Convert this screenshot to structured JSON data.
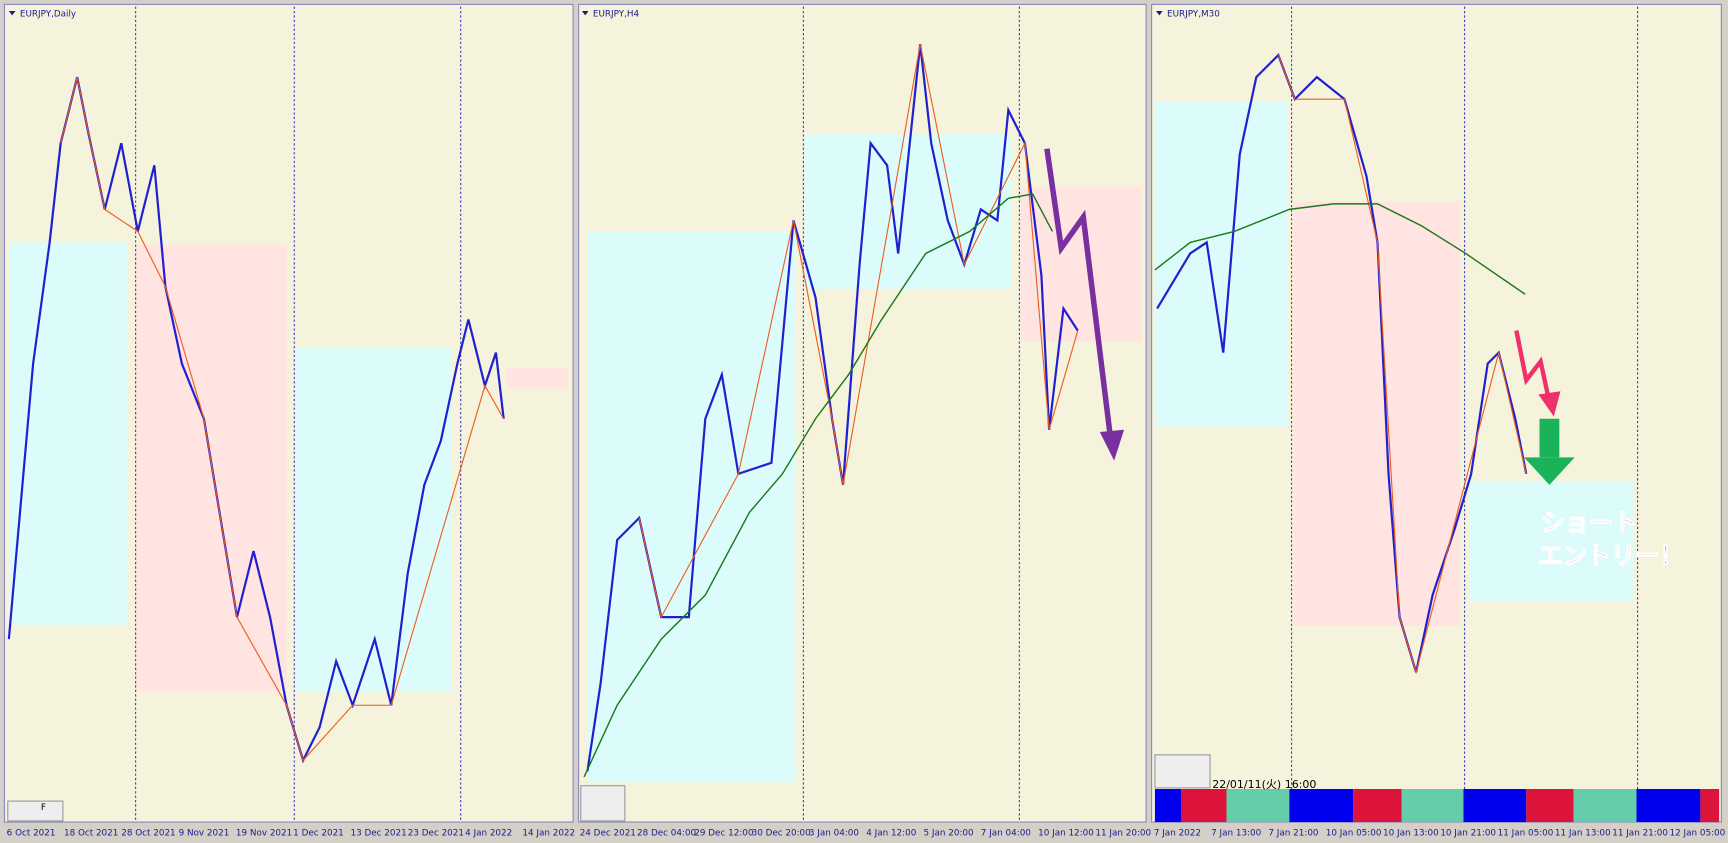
{
  "panels": [
    {
      "title": "EURJPY,Daily",
      "dates": [
        "6 Oct 2021",
        "18 Oct 2021",
        "28 Oct 2021",
        "9 Nov 2021",
        "19 Nov 2021",
        "1 Dec 2021",
        "13 Dec 2021",
        "23 Dec 2021",
        "4 Jan 2022",
        "14 Jan 2022"
      ],
      "button": "F"
    },
    {
      "title": "EURJPY,H4",
      "dates": [
        "24 Dec 2021",
        "28 Dec 04:00",
        "29 Dec 12:00",
        "30 Dec 20:00",
        "3 Jan 04:00",
        "4 Jan 12:00",
        "5 Jan 20:00",
        "7 Jan 04:00",
        "10 Jan 12:00",
        "11 Jan 20:00"
      ]
    },
    {
      "title": "EURJPY,M30",
      "dates": [
        "7 Jan 2022",
        "7 Jan 13:00",
        "7 Jan 21:00",
        "10 Jan 05:00",
        "10 Jan 13:00",
        "10 Jan 21:00",
        "11 Jan 05:00",
        "11 Jan 13:00",
        "11 Jan 21:00",
        "12 Jan 05:00"
      ],
      "timestamp": "22/01/11(火) 16:00"
    }
  ],
  "annotation": [
    "ショート",
    "エントリー！"
  ]
}
